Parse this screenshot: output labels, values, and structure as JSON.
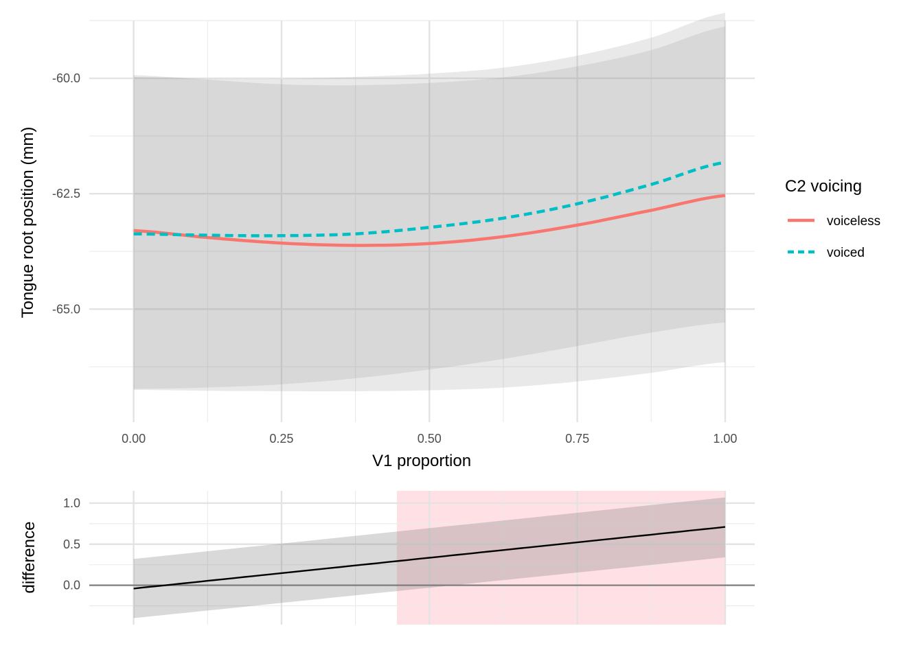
{
  "chart_data": [
    {
      "type": "line",
      "xlabel": "V1 proportion",
      "ylabel": "Tongue root position (mm)",
      "xlim": [
        -0.075,
        1.05
      ],
      "ylim": [
        -67.45,
        -58.75
      ],
      "xticks": [
        0.0,
        0.25,
        0.5,
        0.75,
        1.0
      ],
      "xtick_labels": [
        "0.00",
        "0.25",
        "0.50",
        "0.75",
        "1.00"
      ],
      "yticks": [
        -60.0,
        -62.5,
        -65.0
      ],
      "ytick_labels": [
        "-60.0",
        "-62.5",
        "-65.0"
      ],
      "grid": true,
      "legend": {
        "title": "C2 voicing",
        "position": "right"
      },
      "x": [
        0.0,
        0.125,
        0.25,
        0.375,
        0.5,
        0.625,
        0.75,
        0.875,
        1.0
      ],
      "series": [
        {
          "name": "voiceless",
          "color": "#F8766D",
          "dash": "solid",
          "values": [
            -63.3,
            -63.45,
            -63.57,
            -63.62,
            -63.58,
            -63.43,
            -63.18,
            -62.86,
            -62.54
          ],
          "ci_lower": [
            -66.75,
            -66.77,
            -66.78,
            -66.78,
            -66.76,
            -66.7,
            -66.57,
            -66.38,
            -66.15
          ],
          "ci_upper": [
            -59.93,
            -60.03,
            -60.13,
            -60.15,
            -60.1,
            -59.98,
            -59.74,
            -59.39,
            -58.88
          ]
        },
        {
          "name": "voiced",
          "color": "#00BFC4",
          "dash": "dashed",
          "values": [
            -63.37,
            -63.4,
            -63.41,
            -63.37,
            -63.23,
            -63.03,
            -62.72,
            -62.3,
            -61.82
          ],
          "ci_lower": [
            -66.73,
            -66.7,
            -66.63,
            -66.5,
            -66.31,
            -66.08,
            -65.8,
            -65.51,
            -65.29
          ],
          "ci_upper": [
            -59.97,
            -60.01,
            -60.01,
            -59.97,
            -59.9,
            -59.77,
            -59.51,
            -59.12,
            -58.58
          ]
        }
      ]
    },
    {
      "type": "line",
      "xlabel": "",
      "ylabel": "difference",
      "xlim": [
        -0.075,
        1.05
      ],
      "ylim": [
        -0.48,
        1.15
      ],
      "yticks": [
        0.0,
        0.5,
        1.0
      ],
      "ytick_labels": [
        "0.0",
        "0.5",
        "1.0"
      ],
      "xticks": [
        0.0,
        0.25,
        0.5,
        0.75,
        1.0
      ],
      "grid": true,
      "reference_line": 0,
      "highlight_region": {
        "from": 0.445,
        "to": 1.0,
        "color": "#FFE0E4"
      },
      "x": [
        0.0,
        1.0
      ],
      "series": [
        {
          "color": "#000000",
          "values": [
            -0.04,
            0.71
          ],
          "ci_lower": [
            -0.4,
            0.34
          ],
          "ci_upper": [
            0.32,
            1.07
          ]
        }
      ]
    }
  ]
}
